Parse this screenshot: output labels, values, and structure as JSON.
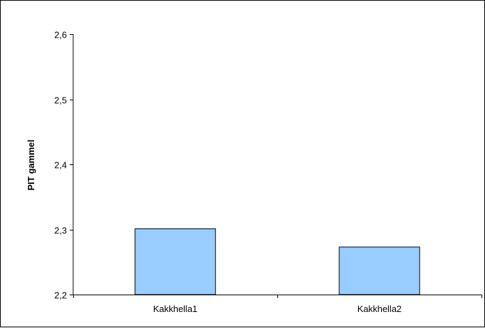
{
  "chart_data": {
    "type": "bar",
    "title": "",
    "xlabel": "",
    "ylabel": "PIT gammel",
    "categories": [
      "Kakkhella1",
      "Kakkhella2"
    ],
    "values": [
      2.301,
      2.273
    ],
    "ylim": [
      2.2,
      2.6
    ],
    "yticks": [
      2.2,
      2.3,
      2.4,
      2.5,
      2.6
    ],
    "ytick_labels": [
      "2,2",
      "2,3",
      "2,4",
      "2,5",
      "2,6"
    ],
    "grid": false,
    "legend": "none",
    "colors": {
      "bar_fill": "#99ccff",
      "bar_stroke": "#000000",
      "axis": "#000000"
    }
  }
}
